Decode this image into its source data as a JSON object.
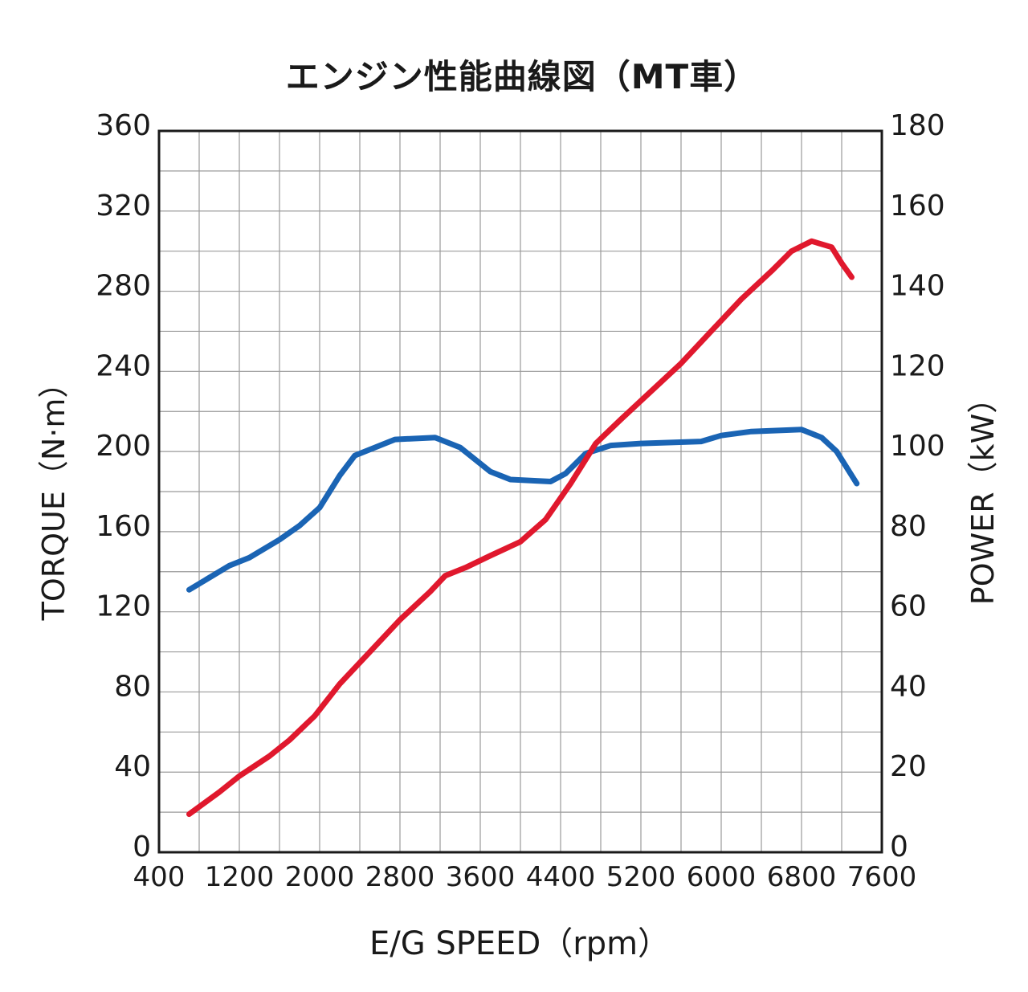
{
  "chart_data": {
    "type": "line",
    "title": "エンジン性能曲線図（MT車）",
    "xlabel": "E/G SPEED（rpm）",
    "ylabel_left": "TORQUE（N·m）",
    "ylabel_right": "POWER（kW）",
    "xlim": [
      400,
      7600
    ],
    "ylim_left": [
      0,
      360
    ],
    "ylim_right": [
      0,
      180
    ],
    "x_ticks": [
      "400",
      "1200",
      "2000",
      "2800",
      "3600",
      "4400",
      "5200",
      "6000",
      "6800",
      "7600"
    ],
    "y_left_ticks": [
      "0",
      "40",
      "80",
      "120",
      "160",
      "200",
      "240",
      "280",
      "320",
      "360"
    ],
    "y_right_ticks": [
      "0",
      "20",
      "40",
      "60",
      "80",
      "100",
      "120",
      "140",
      "160",
      "180"
    ],
    "grid": true,
    "series": [
      {
        "axis": "left",
        "color": "#1a64b4",
        "points": [
          [
            700,
            131
          ],
          [
            1100,
            143
          ],
          [
            1300,
            147
          ],
          [
            1600,
            156
          ],
          [
            1800,
            163
          ],
          [
            2000,
            172
          ],
          [
            2200,
            188
          ],
          [
            2350,
            198
          ],
          [
            2550,
            202
          ],
          [
            2750,
            206
          ],
          [
            3150,
            207
          ],
          [
            3400,
            202
          ],
          [
            3700,
            190
          ],
          [
            3900,
            186
          ],
          [
            4300,
            185
          ],
          [
            4450,
            189
          ],
          [
            4650,
            199
          ],
          [
            4900,
            203
          ],
          [
            5200,
            204
          ],
          [
            5800,
            205
          ],
          [
            6000,
            208
          ],
          [
            6300,
            210
          ],
          [
            6800,
            211
          ],
          [
            7000,
            207
          ],
          [
            7150,
            200
          ],
          [
            7350,
            184
          ]
        ]
      },
      {
        "axis": "right",
        "color": "#e0182d",
        "points": [
          [
            700,
            9.5
          ],
          [
            1000,
            15
          ],
          [
            1200,
            19
          ],
          [
            1500,
            24
          ],
          [
            1700,
            28
          ],
          [
            1950,
            34
          ],
          [
            2200,
            42
          ],
          [
            2500,
            50
          ],
          [
            2800,
            58
          ],
          [
            3100,
            65
          ],
          [
            3250,
            69
          ],
          [
            3450,
            71
          ],
          [
            3700,
            74
          ],
          [
            4000,
            77.5
          ],
          [
            4250,
            83
          ],
          [
            4500,
            92
          ],
          [
            4750,
            102
          ],
          [
            5000,
            108
          ],
          [
            5300,
            115
          ],
          [
            5600,
            122
          ],
          [
            5900,
            130
          ],
          [
            6200,
            138
          ],
          [
            6500,
            145
          ],
          [
            6700,
            150
          ],
          [
            6900,
            152.5
          ],
          [
            7100,
            151
          ],
          [
            7200,
            147
          ],
          [
            7300,
            143.5
          ]
        ]
      }
    ]
  }
}
